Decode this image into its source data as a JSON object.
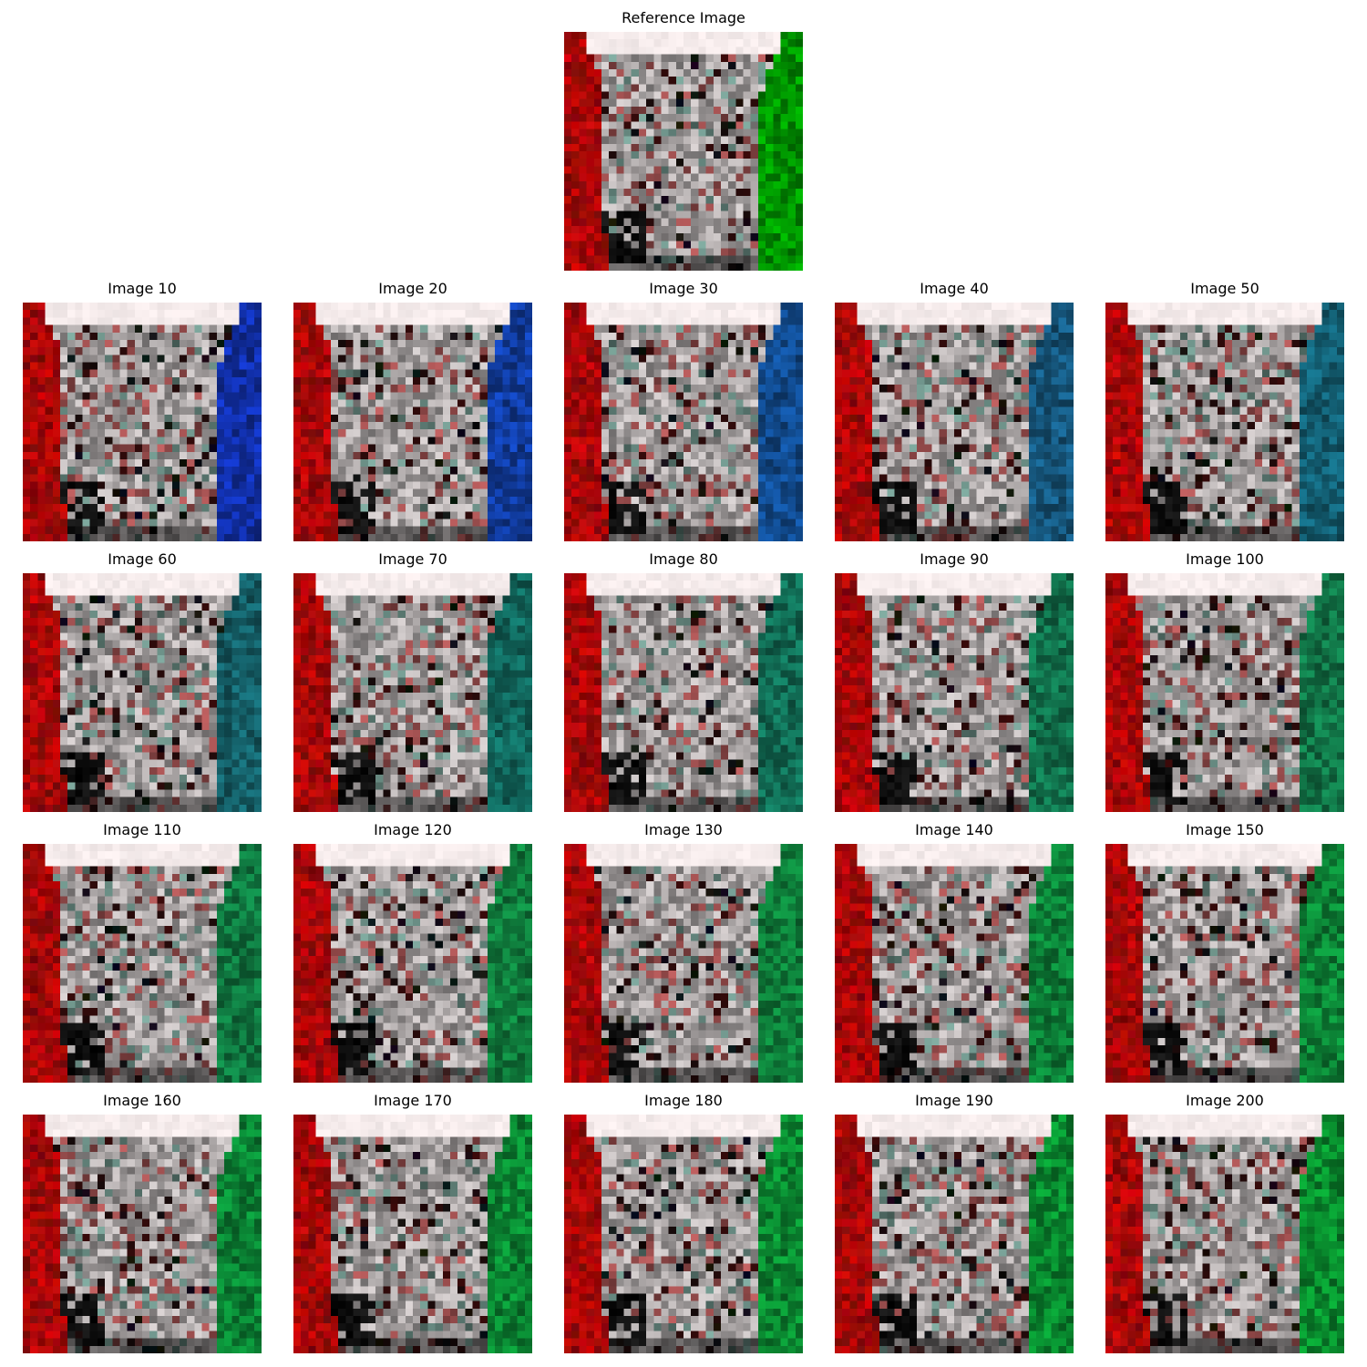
{
  "reference": {
    "title": "Reference Image",
    "right_wall_color": "#00b000"
  },
  "panels": [
    {
      "title": "Image 10",
      "right_wall_color": "#1438c8"
    },
    {
      "title": "Image 20",
      "right_wall_color": "#1448c0"
    },
    {
      "title": "Image 30",
      "right_wall_color": "#1458a8"
    },
    {
      "title": "Image 40",
      "right_wall_color": "#1a6896"
    },
    {
      "title": "Image 50",
      "right_wall_color": "#167088"
    },
    {
      "title": "Image 60",
      "right_wall_color": "#18707a"
    },
    {
      "title": "Image 70",
      "right_wall_color": "#147a6e"
    },
    {
      "title": "Image 80",
      "right_wall_color": "#148064"
    },
    {
      "title": "Image 90",
      "right_wall_color": "#14865a"
    },
    {
      "title": "Image 100",
      "right_wall_color": "#148a54"
    },
    {
      "title": "Image 110",
      "right_wall_color": "#128e4c"
    },
    {
      "title": "Image 120",
      "right_wall_color": "#129448"
    },
    {
      "title": "Image 130",
      "right_wall_color": "#109444"
    },
    {
      "title": "Image 140",
      "right_wall_color": "#0e9842"
    },
    {
      "title": "Image 150",
      "right_wall_color": "#0e9c40"
    },
    {
      "title": "Image 160",
      "right_wall_color": "#0c9c3e"
    },
    {
      "title": "Image 170",
      "right_wall_color": "#0ca03c"
    },
    {
      "title": "Image 180",
      "right_wall_color": "#0ca23a"
    },
    {
      "title": "Image 190",
      "right_wall_color": "#0aa438"
    },
    {
      "title": "Image 200",
      "right_wall_color": "#0aa636"
    }
  ],
  "left_wall_color": "#c00000"
}
